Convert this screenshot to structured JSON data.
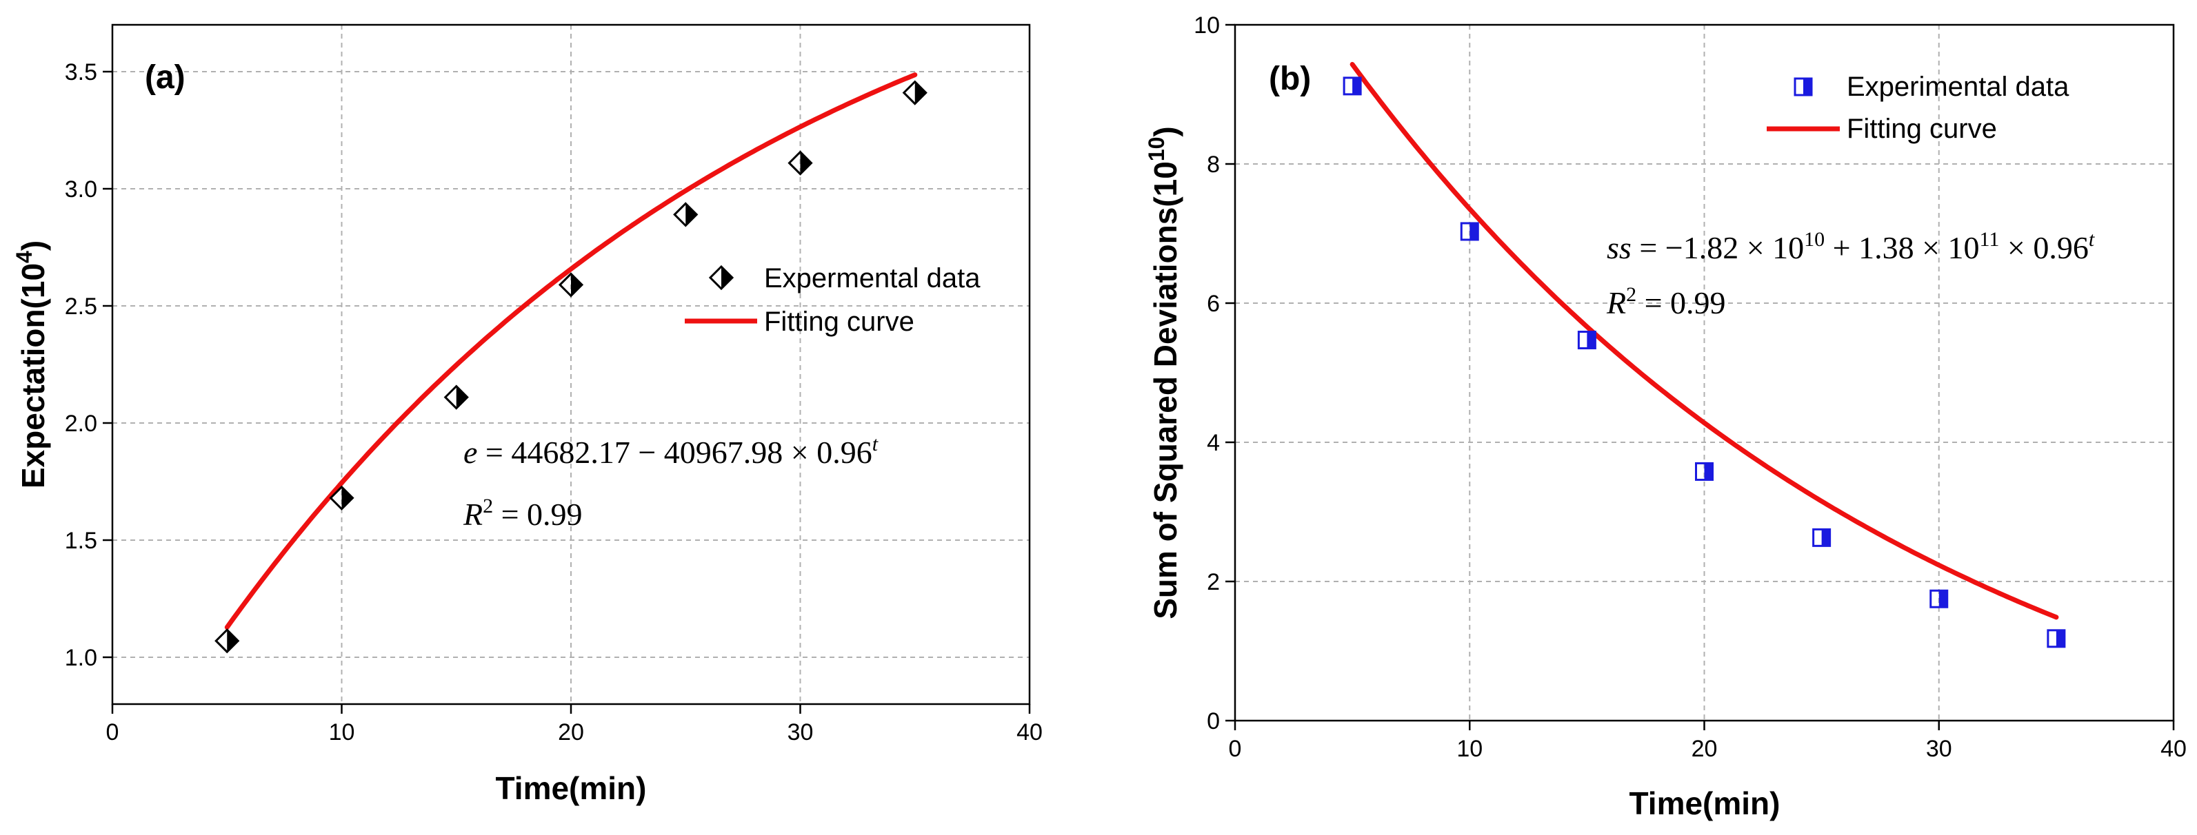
{
  "chart_data": [
    {
      "type": "scatter",
      "panel_label": "(a)",
      "xlabel": "Time(min)",
      "ylabel": "Expectation(10",
      "ylabel_sup": "4",
      "ylabel_end": ")",
      "xlim": [
        0,
        40
      ],
      "ylim": [
        0.8,
        3.7
      ],
      "xticks": [
        "0",
        "10",
        "20",
        "30",
        "40"
      ],
      "yticks": [
        "1.0",
        "1.5",
        "2.0",
        "2.5",
        "3.0",
        "3.5"
      ],
      "grid": true,
      "series": [
        {
          "name": "Expermental data",
          "kind": "points",
          "marker": "half-filled-diamond",
          "color": "#000000",
          "x": [
            5,
            10,
            15,
            20,
            25,
            30,
            35
          ],
          "y": [
            1.07,
            1.68,
            2.11,
            2.59,
            2.89,
            3.11,
            3.41
          ]
        },
        {
          "name": "Fitting curve",
          "kind": "line",
          "color": "#ee1111",
          "model": {
            "a": 4.468217,
            "b": 4.096798,
            "base": 0.96,
            "sign": -1
          }
        }
      ],
      "legend": {
        "position": "right",
        "entries": [
          "Expermental data",
          "Fitting curve"
        ]
      },
      "annotation": {
        "lhs": "e",
        "rhs": " = 44682.17 − 40967.98 × 0.96",
        "exp": "t",
        "r2_lhs": "R",
        "r2_sup": "2",
        "r2_rhs": " = 0.99"
      }
    },
    {
      "type": "scatter",
      "panel_label": "(b)",
      "xlabel": "Time(min)",
      "ylabel": "Sum of Squared Deviations(10",
      "ylabel_sup": "10",
      "ylabel_end": ")",
      "xlim": [
        0,
        40
      ],
      "ylim": [
        0,
        10
      ],
      "xticks": [
        "0",
        "10",
        "20",
        "30",
        "40"
      ],
      "yticks": [
        "0",
        "2",
        "4",
        "6",
        "8",
        "10"
      ],
      "grid": true,
      "series": [
        {
          "name": "Experimental data",
          "kind": "points",
          "marker": "half-filled-square",
          "color": "#1a1adf",
          "x": [
            5,
            10,
            15,
            20,
            25,
            30,
            35
          ],
          "y": [
            9.12,
            7.03,
            5.47,
            3.58,
            2.63,
            1.75,
            1.18
          ]
        },
        {
          "name": "Fitting curve",
          "kind": "line",
          "color": "#ee1111",
          "model": {
            "a": -1.82,
            "b": 13.8,
            "base": 0.96,
            "sign": 1
          }
        }
      ],
      "legend": {
        "position": "top-right",
        "entries": [
          "Experimental data",
          "Fitting curve"
        ]
      },
      "annotation": {
        "lhs": "ss",
        "rhs1": " = −1.82 × 10",
        "sup1": "10",
        "rhs2": " + 1.38 × 10",
        "sup2": "11",
        "rhs3": " × 0.96",
        "exp": "t",
        "r2_lhs": "R",
        "r2_sup": "2",
        "r2_rhs": " = 0.99"
      }
    }
  ]
}
